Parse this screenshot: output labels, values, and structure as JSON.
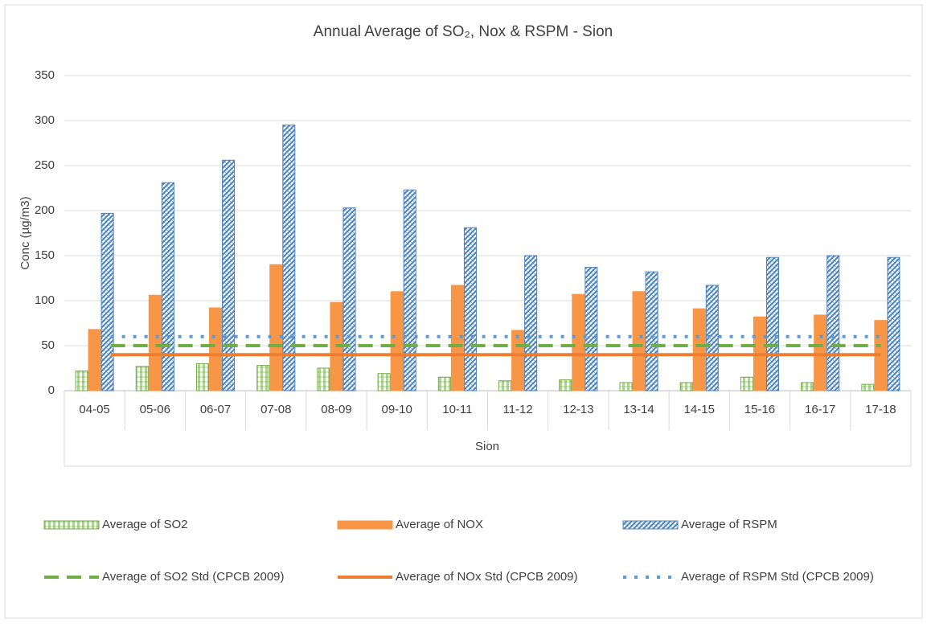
{
  "chart_data": {
    "type": "bar",
    "title": "Annual Average of SO₂, Nox & RSPM - Sion",
    "y_label": "Conc (µg/m3)",
    "x_group_label": "Sion",
    "categories": [
      "04-05",
      "05-06",
      "06-07",
      "07-08",
      "08-09",
      "09-10",
      "10-11",
      "11-12",
      "12-13",
      "13-14",
      "14-15",
      "15-16",
      "16-17",
      "17-18"
    ],
    "series": [
      {
        "name": "Average of SO2",
        "type": "bar",
        "pattern": "hatch",
        "color": "#70ad47",
        "values": [
          22,
          27,
          30,
          28,
          25,
          19,
          15,
          11,
          12,
          9,
          9,
          15,
          9,
          7
        ]
      },
      {
        "name": "Average of NOX",
        "type": "bar",
        "pattern": "solid",
        "color": "#f79646",
        "values": [
          68,
          106,
          92,
          140,
          98,
          110,
          117,
          67,
          107,
          110,
          91,
          82,
          84,
          78
        ]
      },
      {
        "name": "Average of RSPM",
        "type": "bar",
        "pattern": "weave",
        "color": "#4f81bd",
        "values": [
          197,
          231,
          256,
          295,
          203,
          223,
          181,
          150,
          137,
          132,
          117,
          148,
          150,
          148
        ]
      },
      {
        "name": "Average of SO2 Std (CPCB 2009)",
        "type": "line",
        "dash": "dashed",
        "color": "#70ad47",
        "values": [
          50,
          50,
          50,
          50,
          50,
          50,
          50,
          50,
          50,
          50,
          50,
          50,
          50,
          50
        ]
      },
      {
        "name": "Average of NOx Std (CPCB 2009)",
        "type": "line",
        "dash": "solid",
        "color": "#ed7d31",
        "values": [
          40,
          40,
          40,
          40,
          40,
          40,
          40,
          40,
          40,
          40,
          40,
          40,
          40,
          40
        ]
      },
      {
        "name": "Average of RSPM Std (CPCB 2009)",
        "type": "line",
        "dash": "dotted",
        "color": "#5b9bd5",
        "values": [
          60,
          60,
          60,
          60,
          60,
          60,
          60,
          60,
          60,
          60,
          60,
          60,
          60,
          60
        ]
      }
    ],
    "ylim": [
      0,
      350
    ],
    "yticks": [
      0,
      50,
      100,
      150,
      200,
      250,
      300,
      350
    ],
    "grid": true
  }
}
